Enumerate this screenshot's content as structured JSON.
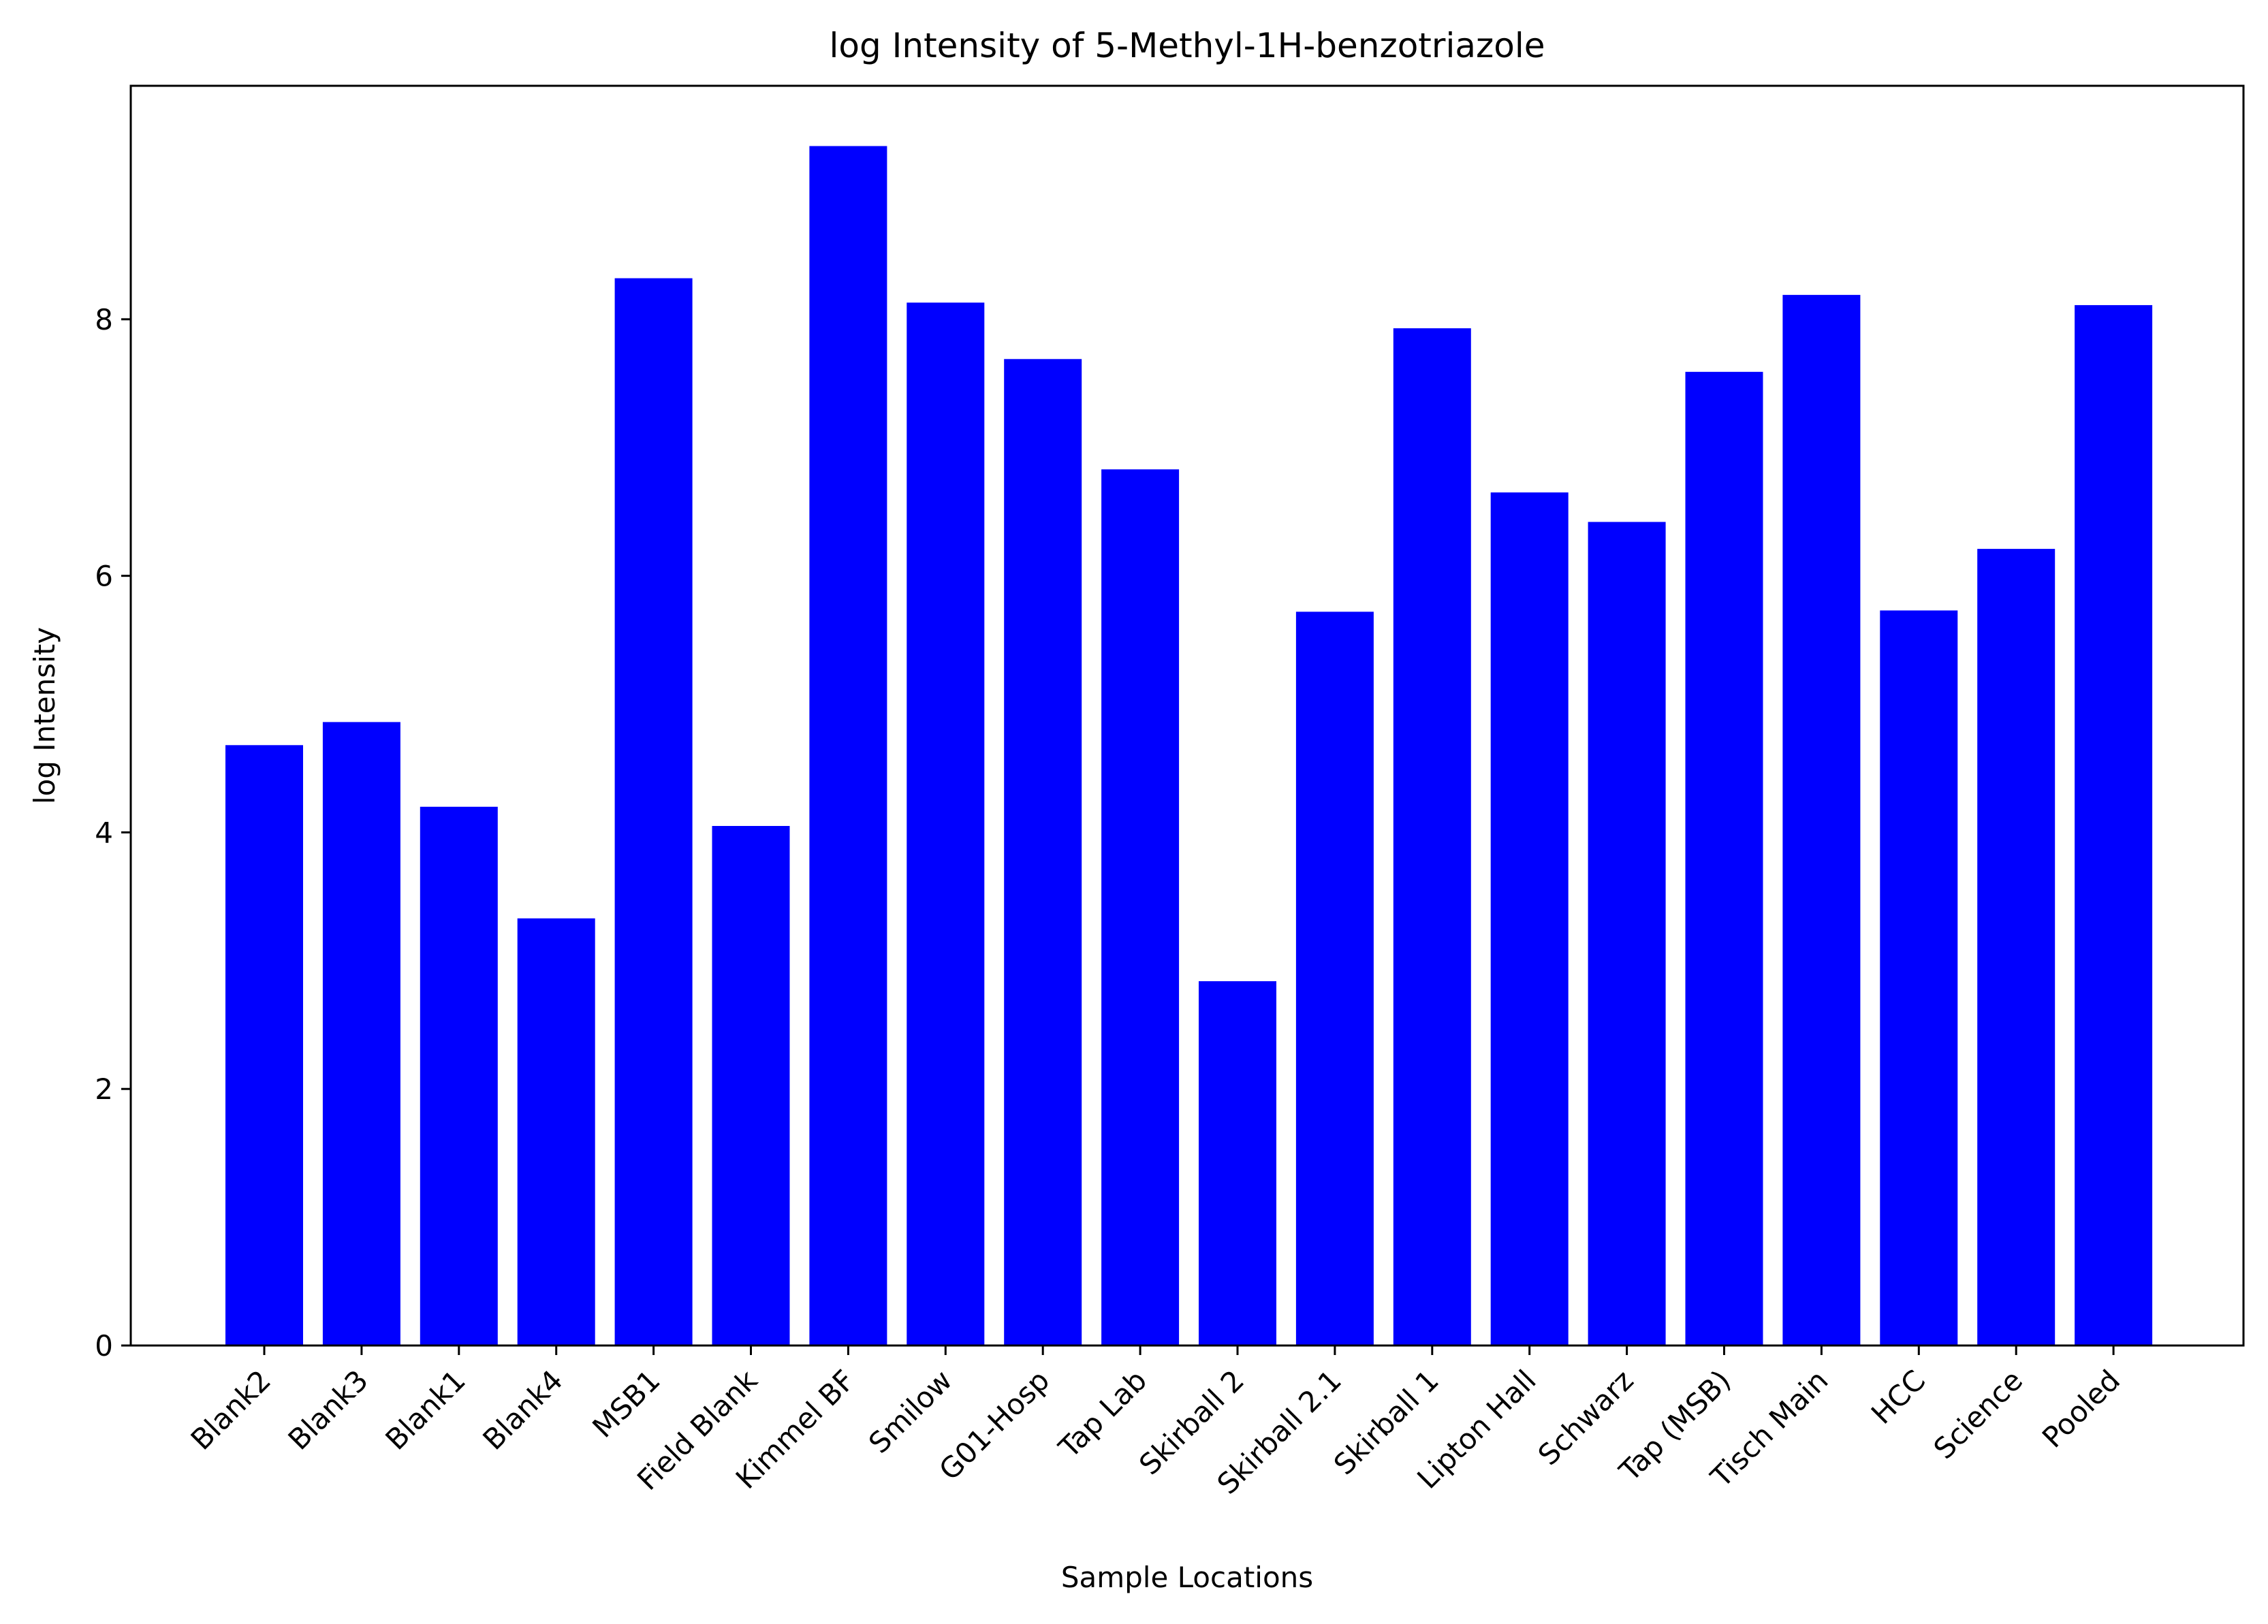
{
  "chart_data": {
    "type": "bar",
    "title": "log Intensity of 5-Methyl-1H-benzotriazole",
    "xlabel": "Sample Locations",
    "ylabel": "log Intensity",
    "categories": [
      "Blank2",
      "Blank3",
      "Blank1",
      "Blank4",
      "MSB1",
      "Field Blank",
      "Kimmel BF",
      "Smilow",
      "G01-Hosp",
      "Tap Lab",
      "Skirball 2",
      "Skirball 2.1",
      "Skirball 1",
      "Lipton Hall",
      "Schwarz",
      "Tap (MSB)",
      "Tisch Main",
      "HCC",
      "Science",
      "Pooled"
    ],
    "values": [
      4.68,
      4.86,
      4.2,
      3.33,
      8.32,
      4.05,
      9.35,
      8.13,
      7.69,
      6.83,
      2.84,
      5.72,
      7.93,
      6.65,
      6.42,
      7.59,
      8.19,
      5.73,
      6.21,
      8.11
    ],
    "ylim": [
      0,
      9.82
    ],
    "yticks": [
      0,
      2,
      4,
      6,
      8
    ],
    "bar_color": "#0000ff",
    "grid": false,
    "legend": "none"
  }
}
